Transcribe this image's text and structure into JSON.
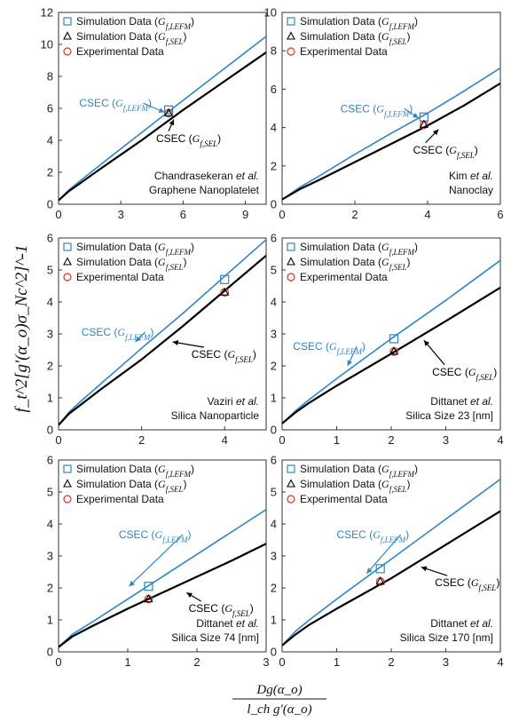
{
  "colors": {
    "lefm": "#2E86C1",
    "sel": "#000000",
    "experimental": "#E03020"
  },
  "axes": {
    "ylabel": "f_t^2[g'(α_o)σ_Nc^2]^-1",
    "xlabel_numerator": "Dg(α_o)",
    "xlabel_denominator": "l_ch g'(α_o)"
  },
  "chart_data": [
    {
      "type": "line",
      "panel": "a",
      "annotation": [
        "Chandrasekeran et al.",
        "Graphene Nanoplatelet"
      ],
      "annotation_text": {
        "author": "Chandrasekeran",
        "etal": "et al.",
        "material": "Graphene Nanoplatelet"
      },
      "xlim": [
        0,
        10
      ],
      "ylim": [
        0,
        12
      ],
      "xticks": [
        0,
        3,
        6,
        9
      ],
      "yticks": [
        0,
        2,
        4,
        6,
        8,
        10,
        12
      ],
      "legend": [
        "Simulation Data (G_f,LEFM)",
        "Simulation Data (G_f,SEL)",
        "Experimental Data"
      ],
      "series": [
        {
          "name": "CSEC (G_f,LEFM)",
          "x": [
            0,
            0.5,
            1,
            2,
            3,
            4,
            5,
            6,
            7,
            8,
            9,
            10
          ],
          "y": [
            0.25,
            0.9,
            1.42,
            2.45,
            3.47,
            4.48,
            5.5,
            6.5,
            7.5,
            8.5,
            9.5,
            10.5
          ]
        },
        {
          "name": "CSEC (G_f,SEL)",
          "x": [
            0,
            0.5,
            1,
            2,
            3,
            4,
            5,
            6,
            7,
            8,
            9,
            10
          ],
          "y": [
            0.25,
            0.82,
            1.28,
            2.2,
            3.1,
            4.0,
            4.95,
            5.9,
            6.8,
            7.7,
            8.6,
            9.5
          ]
        }
      ],
      "points": {
        "simulation_lefm": {
          "x": 5.3,
          "y": 5.9
        },
        "simulation_sel": {
          "x": 5.3,
          "y": 5.7
        },
        "experimental": {
          "x": 5.3,
          "y": 5.7
        }
      },
      "labels": [
        {
          "text": "CSEC",
          "sub": "(G_f,LEFM)",
          "series": "lefm",
          "x": 1.0,
          "y": 6.1,
          "arrow_to": [
            5.1,
            5.75
          ]
        },
        {
          "text": "CSEC",
          "sub": "(G_f,SEL)",
          "series": "sel",
          "x": 4.7,
          "y": 3.9,
          "arrow_to": [
            5.55,
            5.3
          ]
        }
      ]
    },
    {
      "type": "line",
      "panel": "b",
      "annotation": [
        "Kim et al.",
        "Nanoclay"
      ],
      "annotation_text": {
        "author": "Kim",
        "etal": "et al.",
        "material": "Nanoclay"
      },
      "xlim": [
        0,
        6
      ],
      "ylim": [
        0,
        10
      ],
      "xticks": [
        0,
        2,
        4,
        6
      ],
      "yticks": [
        0,
        2,
        4,
        6,
        8,
        10
      ],
      "legend": [
        "Simulation Data (G_f,LEFM)",
        "Simulation Data (G_f,SEL)",
        "Experimental Data"
      ],
      "series": [
        {
          "name": "CSEC (G_f,LEFM)",
          "x": [
            0,
            0.5,
            1,
            2,
            3,
            4,
            5,
            6
          ],
          "y": [
            0.25,
            0.9,
            1.45,
            2.6,
            3.7,
            4.75,
            5.9,
            7.1
          ]
        },
        {
          "name": "CSEC (G_f,SEL)",
          "x": [
            0,
            0.5,
            1,
            2,
            3,
            4,
            5,
            6
          ],
          "y": [
            0.25,
            0.8,
            1.25,
            2.2,
            3.15,
            4.1,
            5.15,
            6.3
          ]
        }
      ],
      "points": {
        "simulation_lefm": {
          "x": 3.9,
          "y": 4.55
        },
        "simulation_sel": {
          "x": 3.9,
          "y": 4.15
        },
        "experimental": {
          "x": 3.9,
          "y": 4.15
        }
      },
      "labels": [
        {
          "text": "CSEC",
          "sub": "(G_f,LEFM)",
          "series": "lefm",
          "x": 1.6,
          "y": 4.8,
          "arrow_to": [
            3.75,
            4.5
          ]
        },
        {
          "text": "CSEC",
          "sub": "(G_f,SEL)",
          "series": "sel",
          "x": 3.6,
          "y": 2.65,
          "arrow_to": [
            4.3,
            3.9
          ]
        }
      ]
    },
    {
      "type": "line",
      "panel": "c",
      "annotation": [
        "Vaziri et al.",
        "Silica Nanoparticle"
      ],
      "annotation_text": {
        "author": "Vaziri",
        "etal": "et al.",
        "material": "Silica Nanoparticle"
      },
      "xlim": [
        0,
        5
      ],
      "ylim": [
        0,
        6
      ],
      "xticks": [
        0,
        2,
        4
      ],
      "yticks": [
        0,
        1,
        2,
        3,
        4,
        5,
        6
      ],
      "legend": [
        "Simulation Data (G_f,LEFM)",
        "Simulation Data (G_f,SEL)",
        "Experimental Data"
      ],
      "series": [
        {
          "name": "CSEC (G_f,LEFM)",
          "x": [
            0,
            0.25,
            0.5,
            1,
            2,
            3,
            4,
            5
          ],
          "y": [
            0.15,
            0.55,
            0.85,
            1.42,
            2.55,
            3.65,
            4.8,
            5.95
          ]
        },
        {
          "name": "CSEC (G_f,SEL)",
          "x": [
            0,
            0.25,
            0.5,
            1,
            2,
            3,
            4,
            5
          ],
          "y": [
            0.15,
            0.5,
            0.75,
            1.25,
            2.2,
            3.25,
            4.35,
            5.45
          ]
        }
      ],
      "points": {
        "simulation_lefm": {
          "x": 4.0,
          "y": 4.7
        },
        "simulation_sel": {
          "x": 4.0,
          "y": 4.3
        },
        "experimental": {
          "x": 4.0,
          "y": 4.3
        }
      },
      "labels": [
        {
          "text": "CSEC",
          "sub": "(G_f,LEFM)",
          "series": "lefm",
          "x": 0.55,
          "y": 2.95,
          "arrow_to": [
            1.85,
            2.75
          ]
        },
        {
          "text": "CSEC",
          "sub": "(G_f,SEL)",
          "series": "sel",
          "x": 3.2,
          "y": 2.25,
          "arrow_to": [
            2.75,
            2.75
          ]
        }
      ]
    },
    {
      "type": "line",
      "panel": "d",
      "annotation": [
        "Dittanet et al.",
        "Silica Size 23 [nm]"
      ],
      "annotation_text": {
        "author": "Dittanet",
        "etal": "et al.",
        "material": "Silica Size 23 [nm]"
      },
      "xlim": [
        0,
        4
      ],
      "ylim": [
        0,
        6
      ],
      "xticks": [
        0,
        1,
        2,
        3,
        4
      ],
      "yticks": [
        0,
        1,
        2,
        3,
        4,
        5,
        6
      ],
      "legend": [
        "Simulation Data (G_f,LEFM)",
        "Simulation Data (G_f,SEL)",
        "Experimental Data"
      ],
      "series": [
        {
          "name": "CSEC (G_f,LEFM)",
          "x": [
            0,
            0.25,
            0.5,
            1,
            2,
            3,
            4
          ],
          "y": [
            0.2,
            0.6,
            0.95,
            1.6,
            2.85,
            4.05,
            5.3
          ]
        },
        {
          "name": "CSEC (G_f,SEL)",
          "x": [
            0,
            0.25,
            0.5,
            1,
            2,
            3,
            4
          ],
          "y": [
            0.2,
            0.55,
            0.85,
            1.38,
            2.38,
            3.4,
            4.45
          ]
        }
      ],
      "points": {
        "simulation_lefm": {
          "x": 2.05,
          "y": 2.85
        },
        "simulation_sel": {
          "x": 2.05,
          "y": 2.45
        },
        "experimental": {
          "x": 2.05,
          "y": 2.45
        }
      },
      "labels": [
        {
          "text": "CSEC",
          "sub": "(G_f,LEFM)",
          "series": "lefm",
          "x": 0.2,
          "y": 2.5,
          "arrow_to": [
            1.2,
            2.0
          ]
        },
        {
          "text": "CSEC",
          "sub": "(G_f,SEL)",
          "series": "sel",
          "x": 2.75,
          "y": 1.7,
          "arrow_to": [
            2.6,
            2.8
          ]
        }
      ]
    },
    {
      "type": "line",
      "panel": "e",
      "annotation": [
        "Dittanet et al.",
        "Silica Size 74 [nm]"
      ],
      "annotation_text": {
        "author": "Dittanet",
        "etal": "et al.",
        "material": "Silica Size 74 [nm]"
      },
      "xlim": [
        0,
        3
      ],
      "ylim": [
        0,
        6
      ],
      "xticks": [
        0,
        1,
        2,
        3
      ],
      "yticks": [
        0,
        1,
        2,
        3,
        4,
        5,
        6
      ],
      "legend": [
        "Simulation Data (G_f,LEFM)",
        "Simulation Data (G_f,SEL)",
        "Experimental Data"
      ],
      "series": [
        {
          "name": "CSEC (G_f,LEFM)",
          "x": [
            0,
            0.2,
            0.5,
            1,
            1.5,
            2,
            2.5,
            3
          ],
          "y": [
            0.15,
            0.55,
            0.95,
            1.65,
            2.35,
            3.05,
            3.75,
            4.45
          ]
        },
        {
          "name": "CSEC (G_f,SEL)",
          "x": [
            0,
            0.2,
            0.5,
            1,
            1.5,
            2,
            2.5,
            3
          ],
          "y": [
            0.15,
            0.48,
            0.82,
            1.35,
            1.85,
            2.35,
            2.85,
            3.38
          ]
        }
      ],
      "points": {
        "simulation_lefm": {
          "x": 1.3,
          "y": 2.05
        },
        "simulation_sel": {
          "x": 1.3,
          "y": 1.65
        },
        "experimental": {
          "x": 1.3,
          "y": 1.65
        }
      },
      "labels": [
        {
          "text": "CSEC",
          "sub": "(G_f,LEFM)",
          "series": "lefm",
          "x": 0.87,
          "y": 3.55,
          "arrow_to": [
            1.02,
            2.05
          ]
        },
        {
          "text": "CSEC",
          "sub": "(G_f,SEL)",
          "series": "sel",
          "x": 1.88,
          "y": 1.25,
          "arrow_to": [
            1.85,
            1.85
          ]
        }
      ]
    },
    {
      "type": "line",
      "panel": "f",
      "annotation": [
        "Dittanet et al.",
        "Silica Size 170 [nm]"
      ],
      "annotation_text": {
        "author": "Dittanet",
        "etal": "et al.",
        "material": "Silica Size 170 [nm]"
      },
      "xlim": [
        0,
        4
      ],
      "ylim": [
        0,
        6
      ],
      "xticks": [
        0,
        1,
        2,
        3,
        4
      ],
      "yticks": [
        0,
        1,
        2,
        3,
        4,
        5,
        6
      ],
      "legend": [
        "Simulation Data (G_f,LEFM)",
        "Simulation Data (G_f,SEL)",
        "Experimental Data"
      ],
      "series": [
        {
          "name": "CSEC (G_f,LEFM)",
          "x": [
            0,
            0.25,
            0.5,
            1,
            2,
            3,
            4
          ],
          "y": [
            0.2,
            0.65,
            1.0,
            1.65,
            2.9,
            4.15,
            5.4
          ]
        },
        {
          "name": "CSEC (G_f,SEL)",
          "x": [
            0,
            0.25,
            0.5,
            1,
            2,
            3,
            4
          ],
          "y": [
            0.2,
            0.55,
            0.85,
            1.35,
            2.3,
            3.35,
            4.4
          ]
        }
      ],
      "points": {
        "simulation_lefm": {
          "x": 1.8,
          "y": 2.6
        },
        "simulation_sel": {
          "x": 1.8,
          "y": 2.2
        },
        "experimental": {
          "x": 1.8,
          "y": 2.2
        }
      },
      "labels": [
        {
          "text": "CSEC",
          "sub": "(G_f,LEFM)",
          "series": "lefm",
          "x": 1.0,
          "y": 3.55,
          "arrow_to": [
            1.55,
            2.45
          ]
        },
        {
          "text": "CSEC",
          "sub": "(G_f,SEL)",
          "series": "sel",
          "x": 2.8,
          "y": 2.05,
          "arrow_to": [
            2.55,
            2.65
          ]
        }
      ]
    }
  ]
}
